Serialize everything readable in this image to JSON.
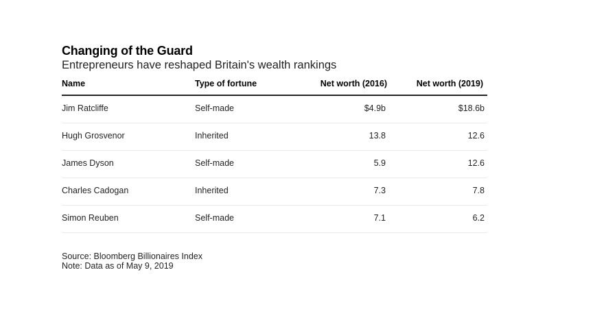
{
  "title": "Changing of the Guard",
  "subtitle": "Entrepreneurs have reshaped Britain's wealth rankings",
  "table": {
    "headers": [
      "Name",
      "Type of fortune",
      "Net worth (2016)",
      "Net worth (2019)"
    ],
    "rows": [
      [
        "Jim Ratcliffe",
        "Self-made",
        "$4.9b",
        "$18.6b"
      ],
      [
        "Hugh Grosvenor",
        "Inherited",
        "13.8",
        "12.6"
      ],
      [
        "James Dyson",
        "Self-made",
        "5.9",
        "12.6"
      ],
      [
        "Charles Cadogan",
        "Inherited",
        "7.3",
        "7.8"
      ],
      [
        "Simon Reuben",
        "Self-made",
        "7.1",
        "6.2"
      ]
    ]
  },
  "footer": {
    "source": "Source: Bloomberg Billionaires Index",
    "note": "Note: Data as of May 9, 2019"
  }
}
